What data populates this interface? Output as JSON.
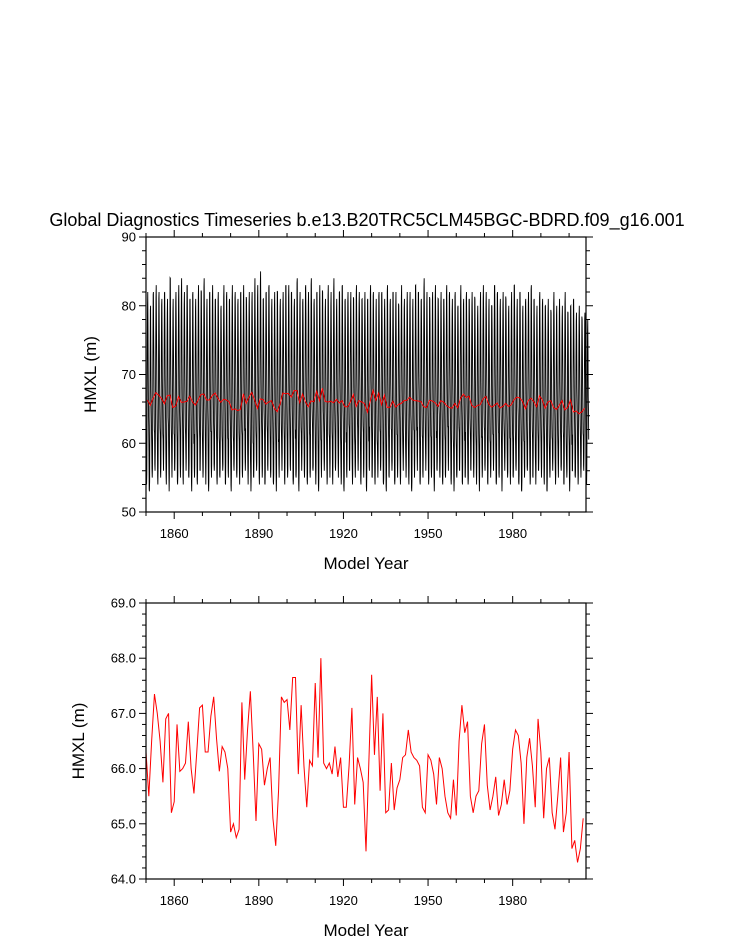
{
  "page": {
    "title": "Global Diagnostics Timeseries b.e13.B20TRC5CLM45BGC-BDRD.f09_g16.001"
  },
  "chart_data": [
    {
      "type": "line",
      "title": "Global Diagnostics Timeseries b.e13.B20TRC5CLM45BGC-BDRD.f09_g16.001",
      "xlabel": "Model Year",
      "ylabel": "HMXL (m)",
      "xlim": [
        1850,
        2006
      ],
      "ylim": [
        50,
        90
      ],
      "xticks": [
        1860,
        1890,
        1920,
        1950,
        1980
      ],
      "yticks": [
        50,
        60,
        70,
        80,
        90
      ],
      "ytick_labels": [
        "50",
        "60",
        "70",
        "80",
        "90"
      ],
      "grid": false,
      "series": [
        {
          "kind": "monthly",
          "color": "#000000",
          "annual_max": [
            82,
            80,
            82,
            83,
            82,
            81,
            82,
            81,
            84,
            81,
            82,
            83,
            84,
            82,
            83,
            81,
            82,
            81,
            83,
            82,
            84,
            81,
            82,
            83,
            81,
            82,
            80,
            83,
            82,
            81,
            83,
            82,
            81,
            82,
            83,
            81,
            82,
            82,
            84,
            83,
            85,
            81,
            82,
            83,
            81,
            82,
            82,
            81,
            82,
            83,
            83,
            82,
            81,
            84,
            82,
            81,
            83,
            82,
            84,
            81,
            82,
            83,
            82,
            81,
            83,
            82,
            84,
            81,
            82,
            83,
            81,
            82,
            82,
            81,
            83,
            82,
            81,
            82,
            81,
            83,
            82,
            81,
            82,
            82,
            81,
            83,
            81,
            82,
            82,
            80,
            83,
            81,
            82,
            82,
            81,
            83,
            82,
            81,
            84,
            82,
            81,
            82,
            83,
            81,
            82,
            81,
            83,
            82,
            81,
            82,
            80,
            83,
            81,
            82,
            81,
            82,
            81,
            80,
            82,
            83,
            82,
            81,
            80,
            83,
            82,
            81,
            82,
            81,
            80,
            82,
            83,
            81,
            82,
            80,
            81,
            82,
            83,
            81,
            80,
            82,
            81,
            80,
            81,
            79,
            82,
            80,
            81,
            80,
            82,
            79,
            80,
            81,
            79,
            80,
            78,
            79,
            78
          ],
          "annual_min": [
            54,
            53,
            55,
            56,
            54,
            55,
            56,
            54,
            53,
            55,
            56,
            54,
            55,
            54,
            56,
            55,
            53,
            55,
            54,
            56,
            55,
            54,
            53,
            55,
            56,
            54,
            55,
            56,
            54,
            55,
            53,
            56,
            55,
            54,
            55,
            56,
            54,
            53,
            55,
            56,
            54,
            55,
            54,
            56,
            55,
            54,
            53,
            55,
            56,
            54,
            55,
            56,
            54,
            55,
            53,
            56,
            55,
            54,
            55,
            56,
            54,
            53,
            55,
            56,
            54,
            55,
            54,
            56,
            55,
            54,
            53,
            55,
            56,
            54,
            55,
            56,
            54,
            55,
            53,
            56,
            55,
            54,
            55,
            56,
            54,
            53,
            55,
            56,
            54,
            55,
            54,
            56,
            55,
            54,
            53,
            55,
            56,
            54,
            55,
            56,
            54,
            55,
            53,
            56,
            55,
            54,
            55,
            56,
            54,
            53,
            55,
            56,
            54,
            55,
            54,
            56,
            55,
            54,
            53,
            55,
            56,
            54,
            55,
            56,
            54,
            55,
            53,
            56,
            55,
            54,
            55,
            56,
            54,
            53,
            55,
            56,
            54,
            55,
            54,
            56,
            55,
            54,
            53,
            55,
            56,
            54,
            55,
            56,
            54,
            55,
            53,
            56,
            55,
            54,
            55,
            56,
            54
          ]
        },
        {
          "kind": "annual_mean",
          "color": "#ff0000"
        }
      ]
    },
    {
      "type": "line",
      "title": "",
      "xlabel": "Model Year",
      "ylabel": "HMXL (m)",
      "xlim": [
        1850,
        2006
      ],
      "ylim": [
        64.0,
        69.0
      ],
      "xticks": [
        1860,
        1890,
        1920,
        1950,
        1980
      ],
      "yticks": [
        64,
        65,
        66,
        67,
        68,
        69
      ],
      "ytick_labels": [
        "64.0",
        "65.0",
        "66.0",
        "67.0",
        "68.0",
        "69.0"
      ],
      "grid": false,
      "series": [
        {
          "kind": "annual_mean",
          "color": "#ff0000",
          "x_start": 1850,
          "values": [
            66.3,
            65.5,
            66.5,
            67.35,
            67.0,
            66.5,
            65.75,
            66.9,
            67.0,
            65.2,
            65.4,
            66.8,
            65.95,
            66.0,
            66.1,
            66.85,
            66.0,
            65.55,
            66.3,
            67.1,
            67.15,
            66.3,
            66.3,
            66.95,
            67.3,
            66.55,
            65.95,
            66.4,
            66.3,
            66.0,
            64.85,
            65.0,
            64.75,
            64.9,
            67.2,
            65.8,
            66.7,
            67.4,
            66.3,
            65.05,
            66.45,
            66.35,
            65.7,
            66.0,
            66.2,
            65.1,
            64.6,
            65.6,
            67.3,
            67.2,
            67.25,
            66.7,
            67.65,
            67.65,
            65.9,
            67.15,
            66.05,
            65.3,
            66.15,
            66.05,
            67.55,
            66.2,
            68.0,
            66.1,
            66.0,
            66.1,
            65.9,
            66.4,
            65.85,
            66.2,
            65.3,
            65.3,
            66.05,
            67.1,
            65.35,
            66.2,
            66.0,
            65.75,
            64.5,
            66.1,
            67.7,
            66.25,
            67.3,
            65.6,
            67.0,
            65.2,
            65.25,
            66.1,
            65.25,
            65.65,
            65.8,
            66.2,
            66.25,
            66.7,
            66.3,
            66.2,
            66.15,
            66.05,
            65.3,
            65.2,
            66.25,
            66.15,
            65.9,
            65.35,
            66.2,
            66.0,
            65.5,
            65.2,
            65.1,
            65.8,
            65.15,
            66.5,
            67.15,
            66.65,
            66.85,
            65.5,
            65.2,
            65.5,
            65.6,
            66.45,
            66.8,
            65.7,
            65.25,
            65.5,
            65.85,
            65.15,
            65.35,
            65.8,
            65.35,
            65.6,
            66.35,
            66.7,
            66.6,
            66.1,
            65.0,
            66.2,
            66.55,
            66.05,
            65.3,
            66.9,
            66.3,
            65.1,
            66.0,
            66.2,
            65.2,
            64.9,
            65.5,
            66.2,
            64.85,
            65.2,
            66.3,
            64.55,
            64.7,
            64.3,
            64.55,
            65.1
          ]
        }
      ]
    }
  ]
}
